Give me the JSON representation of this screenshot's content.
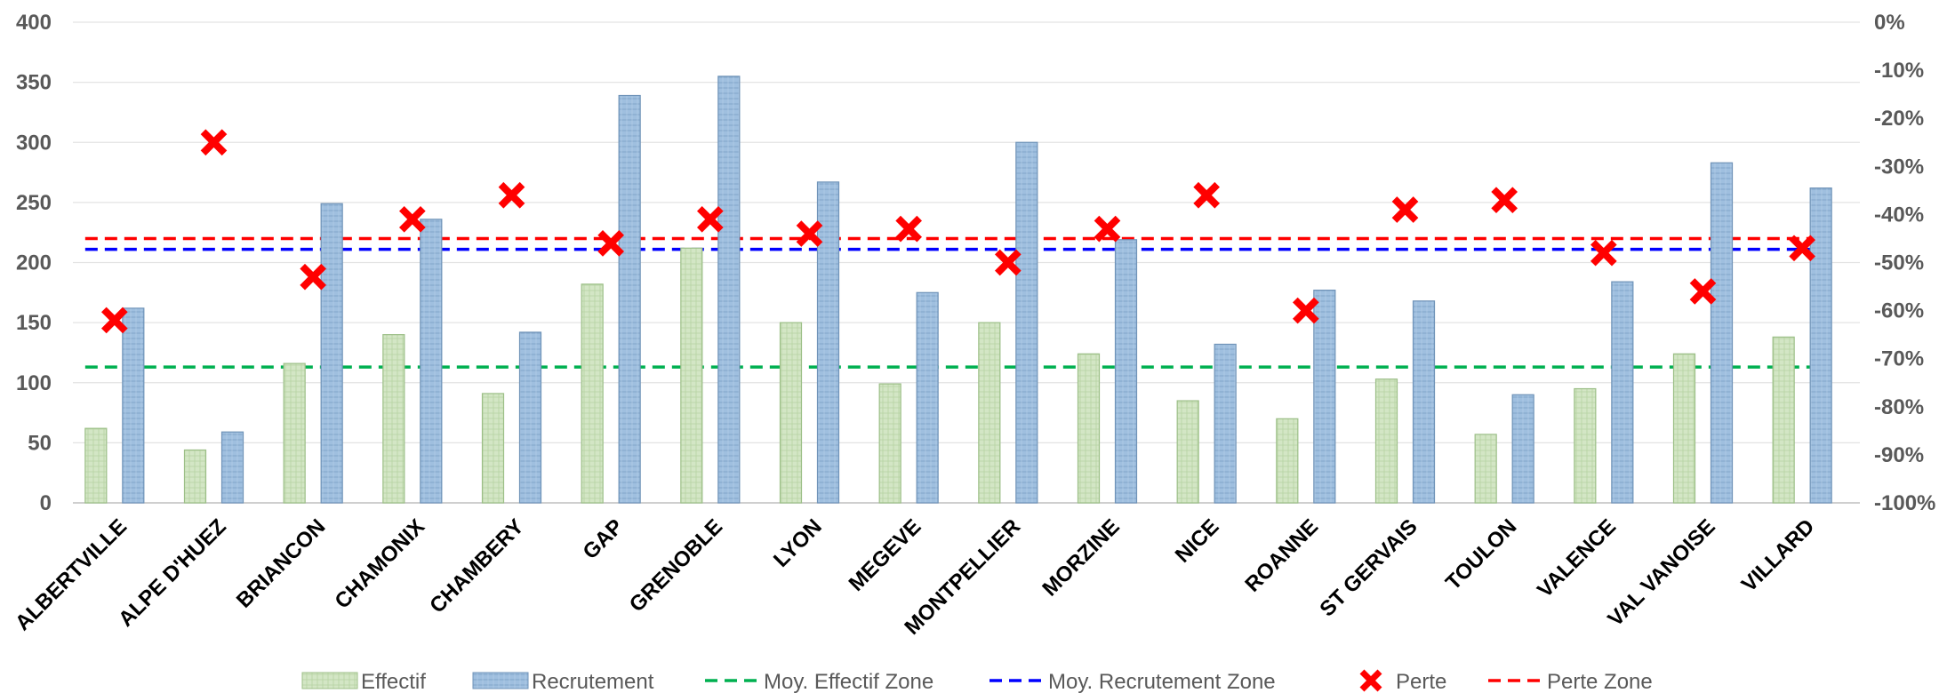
{
  "chart_data": {
    "type": "bar",
    "categories": [
      "ALBERTVILLE",
      "ALPE D'HUEZ",
      "BRIANCON",
      "CHAMONIX",
      "CHAMBERY",
      "GAP",
      "GRENOBLE",
      "LYON",
      "MEGEVE",
      "MONTPELLIER",
      "MORZINE",
      "NICE",
      "ROANNE",
      "ST GERVAIS",
      "TOULON",
      "VALENCE",
      "VAL VANOISE",
      "VILLARD"
    ],
    "series": [
      {
        "name": "Effectif",
        "kind": "bar",
        "axis": "left",
        "color": "#d3e6c5",
        "border": "#9cbf87",
        "values": [
          62,
          44,
          116,
          140,
          91,
          182,
          212,
          150,
          99,
          150,
          124,
          85,
          70,
          103,
          57,
          95,
          124,
          138
        ]
      },
      {
        "name": "Recrutement",
        "kind": "bar",
        "axis": "left",
        "color": "#9fbfdf",
        "border": "#6f93b8",
        "values": [
          162,
          59,
          249,
          236,
          142,
          339,
          355,
          267,
          175,
          300,
          219,
          132,
          177,
          168,
          90,
          184,
          283,
          262
        ]
      },
      {
        "name": "Perte",
        "kind": "marker",
        "axis": "right",
        "color": "#ff0000",
        "values": [
          -62,
          -25,
          -53,
          -41,
          -36,
          -46,
          -41,
          -44,
          -43,
          -50,
          -43,
          -36,
          -60,
          -39,
          -37,
          -48,
          -56,
          -47
        ]
      }
    ],
    "reference_lines": [
      {
        "name": "Moy. Effectif Zone",
        "axis": "left",
        "value": 113,
        "color": "#00b050"
      },
      {
        "name": "Moy. Recrutement Zone",
        "axis": "left",
        "value": 211,
        "color": "#0000ff"
      },
      {
        "name": "Perte Zone",
        "axis": "right",
        "value": -45,
        "color": "#ff0000"
      }
    ],
    "left_axis": {
      "ylim": [
        0,
        400
      ],
      "ticks": [
        "0",
        "50",
        "100",
        "150",
        "200",
        "250",
        "300",
        "350",
        "400"
      ]
    },
    "right_axis": {
      "ylim": [
        -100,
        0
      ],
      "ticks": [
        "-100%",
        "-90%",
        "-80%",
        "-70%",
        "-60%",
        "-50%",
        "-40%",
        "-30%",
        "-20%",
        "-10%",
        "0%"
      ]
    },
    "grid": true,
    "legend_position": "bottom",
    "legend": [
      "Effectif",
      "Recrutement",
      "Moy. Effectif Zone",
      "Moy. Recrutement Zone",
      "Perte",
      "Perte Zone"
    ],
    "title": "",
    "xlabel": "",
    "ylabel": ""
  }
}
